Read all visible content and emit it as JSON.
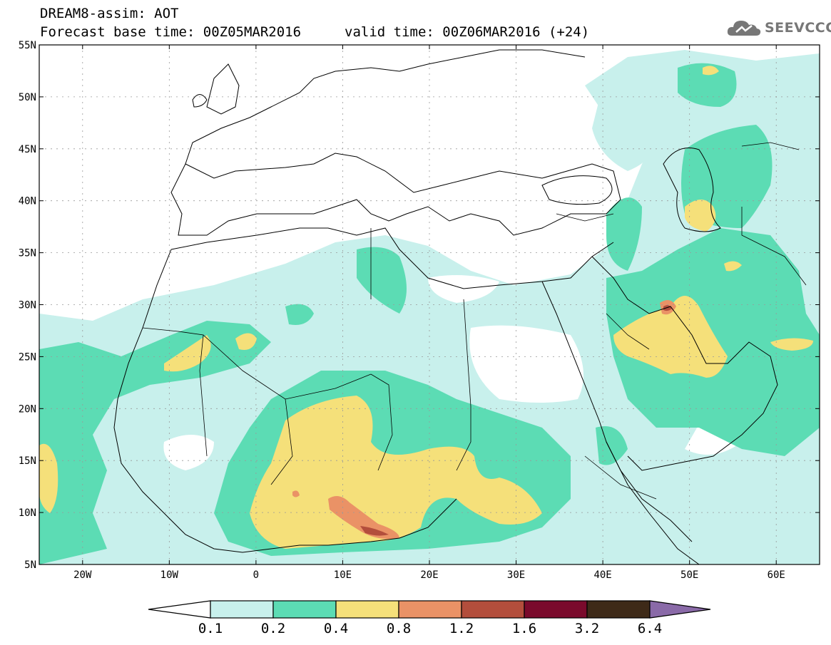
{
  "header": {
    "model_title": "DREAM8-assim: AOT",
    "base_time": "Forecast base time: 00Z05MAR2016",
    "valid_time": "valid time: 00Z06MAR2016 (+24)"
  },
  "logo": {
    "text": "SEEVCCC",
    "icon": "cloud-icon"
  },
  "map": {
    "lon_range": [
      -25,
      65
    ],
    "lat_range": [
      5,
      55
    ],
    "lat_labels": [
      "55N",
      "50N",
      "45N",
      "40N",
      "35N",
      "30N",
      "25N",
      "20N",
      "15N",
      "10N",
      "5N"
    ],
    "lon_labels": [
      "20W",
      "10W",
      "0",
      "10E",
      "20E",
      "30E",
      "40E",
      "50E",
      "60E"
    ],
    "ocean_color": "#ffffff",
    "border_color": "#000000"
  },
  "colorbar": {
    "colors": [
      "#c8f0ec",
      "#5cdcb4",
      "#f5e07a",
      "#ea9266",
      "#b34e3c",
      "#7a0a2c",
      "#3e2a18",
      "#8a6aa8"
    ],
    "labels": [
      "0.1",
      "0.2",
      "0.4",
      "0.8",
      "1.2",
      "1.6",
      "3.2",
      "6.4"
    ]
  }
}
